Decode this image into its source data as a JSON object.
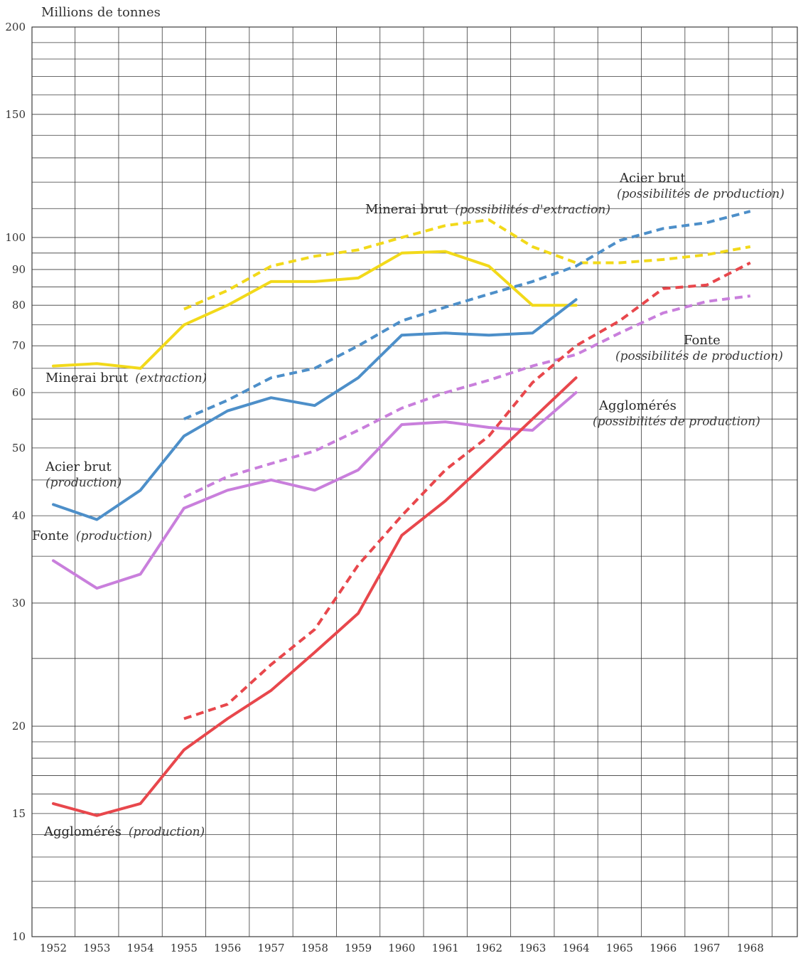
{
  "chart_data": {
    "type": "line",
    "scale": "log",
    "ylabel": "Millions de tonnes",
    "ylim": [
      10,
      200
    ],
    "y_ticks": [
      200,
      150,
      100,
      90,
      80,
      70,
      60,
      50,
      40,
      30,
      20,
      15,
      10
    ],
    "x_ticks": [
      1952,
      1953,
      1954,
      1955,
      1956,
      1957,
      1958,
      1959,
      1960,
      1961,
      1962,
      1963,
      1964,
      1965,
      1966,
      1967,
      1968
    ],
    "grid": true,
    "series": [
      {
        "key": "minerai-extraction",
        "label": "Minerai brut",
        "sublabel": "(extraction)",
        "color": "#f2d91a",
        "style": "solid",
        "x": [
          1952,
          1953,
          1954,
          1955,
          1956,
          1957,
          1958,
          1959,
          1960,
          1961,
          1962,
          1963,
          1964
        ],
        "values": [
          65.5,
          66,
          65,
          75,
          80,
          86.5,
          86.5,
          87.5,
          95,
          95.5,
          91,
          80,
          80
        ]
      },
      {
        "key": "minerai-possibilites",
        "label": "Minerai brut",
        "sublabel": "(possibilités d'extraction)",
        "color": "#f2d91a",
        "style": "dashed",
        "x": [
          1955,
          1956,
          1957,
          1958,
          1959,
          1960,
          1961,
          1962,
          1963,
          1964,
          1965,
          1966,
          1967,
          1968
        ],
        "values": [
          79,
          84,
          91,
          94,
          96,
          100,
          104,
          106,
          97,
          92,
          92,
          93,
          94.5,
          97
        ]
      },
      {
        "key": "acier-production",
        "label": "Acier brut",
        "sublabel": "(production)",
        "color": "#4d8fc9",
        "style": "solid",
        "x": [
          1952,
          1953,
          1954,
          1955,
          1956,
          1957,
          1958,
          1959,
          1960,
          1961,
          1962,
          1963,
          1964
        ],
        "values": [
          41.5,
          39.5,
          43.5,
          52,
          56.5,
          59,
          57.5,
          63,
          72.5,
          73,
          72.5,
          73,
          81.5
        ]
      },
      {
        "key": "acier-possibilites",
        "label": "Acier brut",
        "sublabel": "(possibilités de production)",
        "color": "#4d8fc9",
        "style": "dashed",
        "x": [
          1955,
          1956,
          1957,
          1958,
          1959,
          1960,
          1961,
          1962,
          1963,
          1964,
          1965,
          1966,
          1967,
          1968
        ],
        "values": [
          55,
          58.5,
          63,
          65,
          70,
          76,
          79.5,
          83,
          86.5,
          91,
          99,
          103,
          105,
          109
        ]
      },
      {
        "key": "fonte-production",
        "label": "Fonte",
        "sublabel": "(production)",
        "color": "#c97fdc",
        "style": "solid",
        "x": [
          1952,
          1953,
          1954,
          1955,
          1956,
          1957,
          1958,
          1959,
          1960,
          1961,
          1962,
          1963,
          1964
        ],
        "values": [
          34.5,
          31.5,
          33,
          41,
          43.5,
          45,
          43.5,
          46.5,
          54,
          54.5,
          53.5,
          53,
          60
        ]
      },
      {
        "key": "fonte-possibilites",
        "label": "Fonte",
        "sublabel": "(possibilités de production)",
        "color": "#c97fdc",
        "style": "dashed",
        "x": [
          1955,
          1956,
          1957,
          1958,
          1959,
          1960,
          1961,
          1962,
          1963,
          1964,
          1965,
          1966,
          1967,
          1968
        ],
        "values": [
          42.5,
          45.5,
          47.5,
          49.5,
          53,
          57,
          60,
          62.5,
          65.5,
          68,
          73,
          78,
          81,
          82.5
        ]
      },
      {
        "key": "agglomeres-production",
        "label": "Agglomérés",
        "sublabel": "(production)",
        "color": "#e8474c",
        "style": "solid",
        "x": [
          1952,
          1953,
          1954,
          1955,
          1956,
          1957,
          1958,
          1959,
          1960,
          1961,
          1962,
          1963,
          1964
        ],
        "values": [
          15.5,
          14.9,
          15.5,
          18.5,
          20.5,
          22.5,
          25.5,
          29,
          37.5,
          42,
          48,
          55,
          63
        ]
      },
      {
        "key": "agglomeres-possibilites",
        "label": "Agglomérés",
        "sublabel": "(possibilités de production)",
        "color": "#e8474c",
        "style": "dashed",
        "x": [
          1955,
          1956,
          1957,
          1958,
          1959,
          1960,
          1961,
          1962,
          1963,
          1964,
          1965,
          1966,
          1967,
          1968
        ],
        "values": [
          20.5,
          21.5,
          24.5,
          27.5,
          34,
          40,
          46.5,
          52,
          62,
          70,
          76,
          84.5,
          85.5,
          92
        ]
      }
    ]
  }
}
